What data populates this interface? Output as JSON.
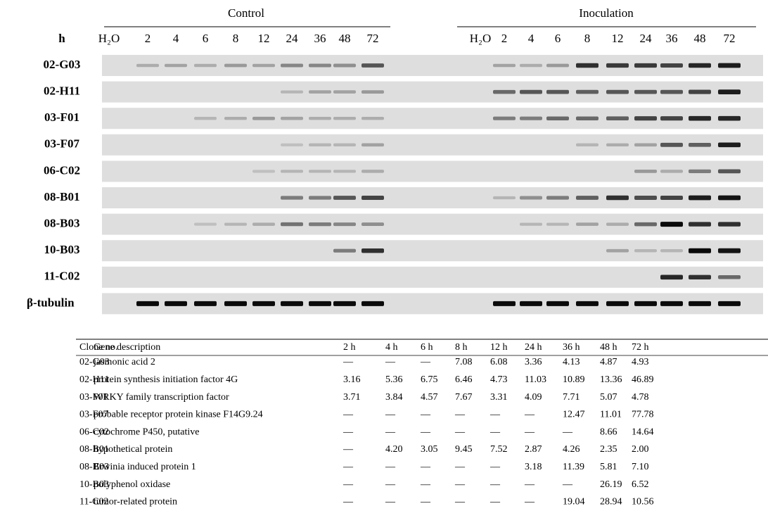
{
  "gel": {
    "groups": [
      "Control",
      "Inoculation"
    ],
    "hour_header": "h",
    "lanes": [
      "H₂O",
      "2",
      "4",
      "6",
      "8",
      "12",
      "24",
      "36",
      "48",
      "72"
    ],
    "rows": [
      "02-G03",
      "02-H11",
      "03-F01",
      "03-F07",
      "06-C02",
      "08-B01",
      "08-B03",
      "10-B03",
      "11-C02",
      "β-tubulin"
    ]
  },
  "table": {
    "header": [
      "Clone no.",
      "Gene description",
      "2 h",
      "4 h",
      "6 h",
      "8 h",
      "12 h",
      "24 h",
      "36 h",
      "48 h",
      "72 h"
    ],
    "rows": [
      [
        "02-G03",
        "jasmonic acid 2",
        "—",
        "—",
        "—",
        "7.08",
        "6.08",
        "3.36",
        "4.13",
        "4.87",
        "4.93"
      ],
      [
        "02-H11",
        "protein synthesis initiation factor 4G",
        "3.16",
        "5.36",
        "6.75",
        "6.46",
        "4.73",
        "11.03",
        "10.89",
        "13.36",
        "46.89"
      ],
      [
        "03-F01",
        "WRKY family transcription factor",
        "3.71",
        "3.84",
        "4.57",
        "7.67",
        "3.31",
        "4.09",
        "7.71",
        "5.07",
        "4.78"
      ],
      [
        "03-F07",
        "probable receptor protein kinase F14G9.24",
        "—",
        "—",
        "—",
        "—",
        "—",
        "—",
        "12.47",
        "11.01",
        "77.78"
      ],
      [
        "06-C02",
        "cytochrome P450, putative",
        "—",
        "—",
        "—",
        "—",
        "—",
        "—",
        "—",
        "8.66",
        "14.64"
      ],
      [
        "08-B01",
        "hypothetical protein",
        "—",
        "4.20",
        "3.05",
        "9.45",
        "7.52",
        "2.87",
        "4.26",
        "2.35",
        "2.00"
      ],
      [
        "08-B03",
        "Erwinia induced protein 1",
        "—",
        "—",
        "—",
        "—",
        "—",
        "3.18",
        "11.39",
        "5.81",
        "7.10"
      ],
      [
        "10-B03",
        "polyphenol oxidase",
        "—",
        "—",
        "—",
        "—",
        "—",
        "—",
        "—",
        "26.19",
        "6.52"
      ],
      [
        "11-C02",
        "tumor-related protein",
        "—",
        "—",
        "—",
        "—",
        "—",
        "—",
        "19.04",
        "28.94",
        "10.56"
      ]
    ]
  }
}
